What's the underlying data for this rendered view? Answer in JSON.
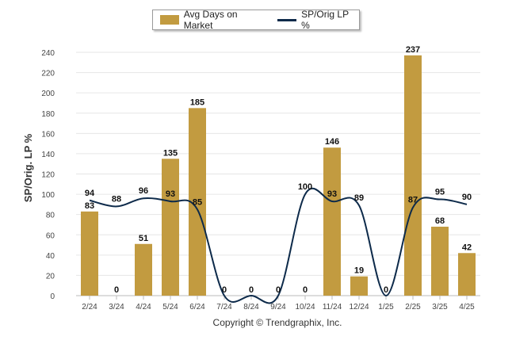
{
  "chart_data": {
    "type": "bar",
    "categories": [
      "2/24",
      "3/24",
      "4/24",
      "5/24",
      "6/24",
      "7/24",
      "8/24",
      "9/24",
      "10/24",
      "11/24",
      "12/24",
      "1/25",
      "2/25",
      "3/25",
      "4/25"
    ],
    "series": [
      {
        "name": "Avg Days on Market",
        "type": "bar",
        "color": "#c29b40",
        "values": [
          83,
          0,
          51,
          135,
          185,
          0,
          0,
          0,
          0,
          146,
          19,
          0,
          237,
          68,
          42
        ]
      },
      {
        "name": "SP/Orig LP %",
        "type": "line",
        "color": "#0d2a4a",
        "values": [
          94,
          88,
          96,
          93,
          85,
          0,
          0,
          0,
          100,
          93,
          89,
          0,
          87,
          95,
          90
        ]
      }
    ],
    "ylabel": "SP/Orig. LP %",
    "ylim": [
      0,
      240
    ],
    "yticks": [
      0,
      20,
      40,
      60,
      80,
      100,
      120,
      140,
      160,
      180,
      200,
      220,
      240
    ],
    "grid": true,
    "legend_position": "top-center"
  },
  "footer": {
    "copyright": "Copyright © Trendgraphix, Inc."
  }
}
